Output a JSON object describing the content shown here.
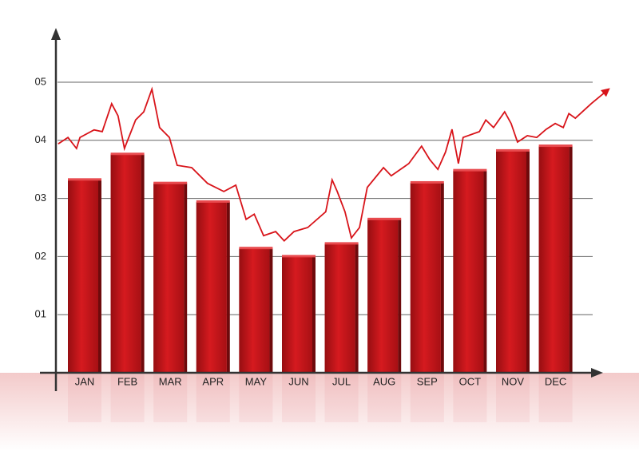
{
  "chart_data": {
    "type": "bar",
    "categories": [
      "JAN",
      "FEB",
      "MAR",
      "APR",
      "MAY",
      "JUN",
      "JUL",
      "AUG",
      "SEP",
      "OCT",
      "NOV",
      "DEC"
    ],
    "ylim": [
      0,
      5.5
    ],
    "yticks": [
      {
        "value": 1,
        "label": "01"
      },
      {
        "value": 2,
        "label": "02"
      },
      {
        "value": 3,
        "label": "03"
      },
      {
        "value": 4,
        "label": "04"
      },
      {
        "value": 5,
        "label": "05"
      }
    ],
    "grid": true,
    "series": [
      {
        "type": "bar",
        "color": "#c8141a",
        "values": [
          3.32,
          3.76,
          3.26,
          2.94,
          2.14,
          2.0,
          2.22,
          2.64,
          3.27,
          3.48,
          3.82,
          3.9
        ]
      },
      {
        "type": "line",
        "color": "#d8141a",
        "x": [
          -0.62,
          -0.39,
          -0.19,
          -0.11,
          0.22,
          0.41,
          0.63,
          0.78,
          0.93,
          1.19,
          1.38,
          1.57,
          1.75,
          1.98,
          2.16,
          2.5,
          2.87,
          3.25,
          3.53,
          3.77,
          3.96,
          4.18,
          4.46,
          4.66,
          4.89,
          5.21,
          5.63,
          5.78,
          5.9,
          6.08,
          6.23,
          6.42,
          6.6,
          6.98,
          7.16,
          7.57,
          7.87,
          8.06,
          8.25,
          8.43,
          8.58,
          8.73,
          8.84,
          9.22,
          9.37,
          9.55,
          9.81,
          9.96,
          10.11,
          10.34,
          10.56,
          10.78,
          10.99,
          11.18,
          11.31,
          11.46,
          11.83,
          12.24
        ],
        "values": [
          3.94,
          4.05,
          3.86,
          4.05,
          4.18,
          4.15,
          4.63,
          4.42,
          3.86,
          4.35,
          4.49,
          4.88,
          4.22,
          4.05,
          3.57,
          3.53,
          3.26,
          3.12,
          3.23,
          2.64,
          2.73,
          2.36,
          2.43,
          2.27,
          2.43,
          2.5,
          2.77,
          3.32,
          3.12,
          2.77,
          2.32,
          2.5,
          3.19,
          3.53,
          3.39,
          3.6,
          3.9,
          3.67,
          3.5,
          3.8,
          4.19,
          3.6,
          4.05,
          4.15,
          4.35,
          4.22,
          4.49,
          4.29,
          3.97,
          4.08,
          4.05,
          4.19,
          4.29,
          4.22,
          4.46,
          4.38,
          4.63,
          4.88
        ]
      }
    ]
  }
}
